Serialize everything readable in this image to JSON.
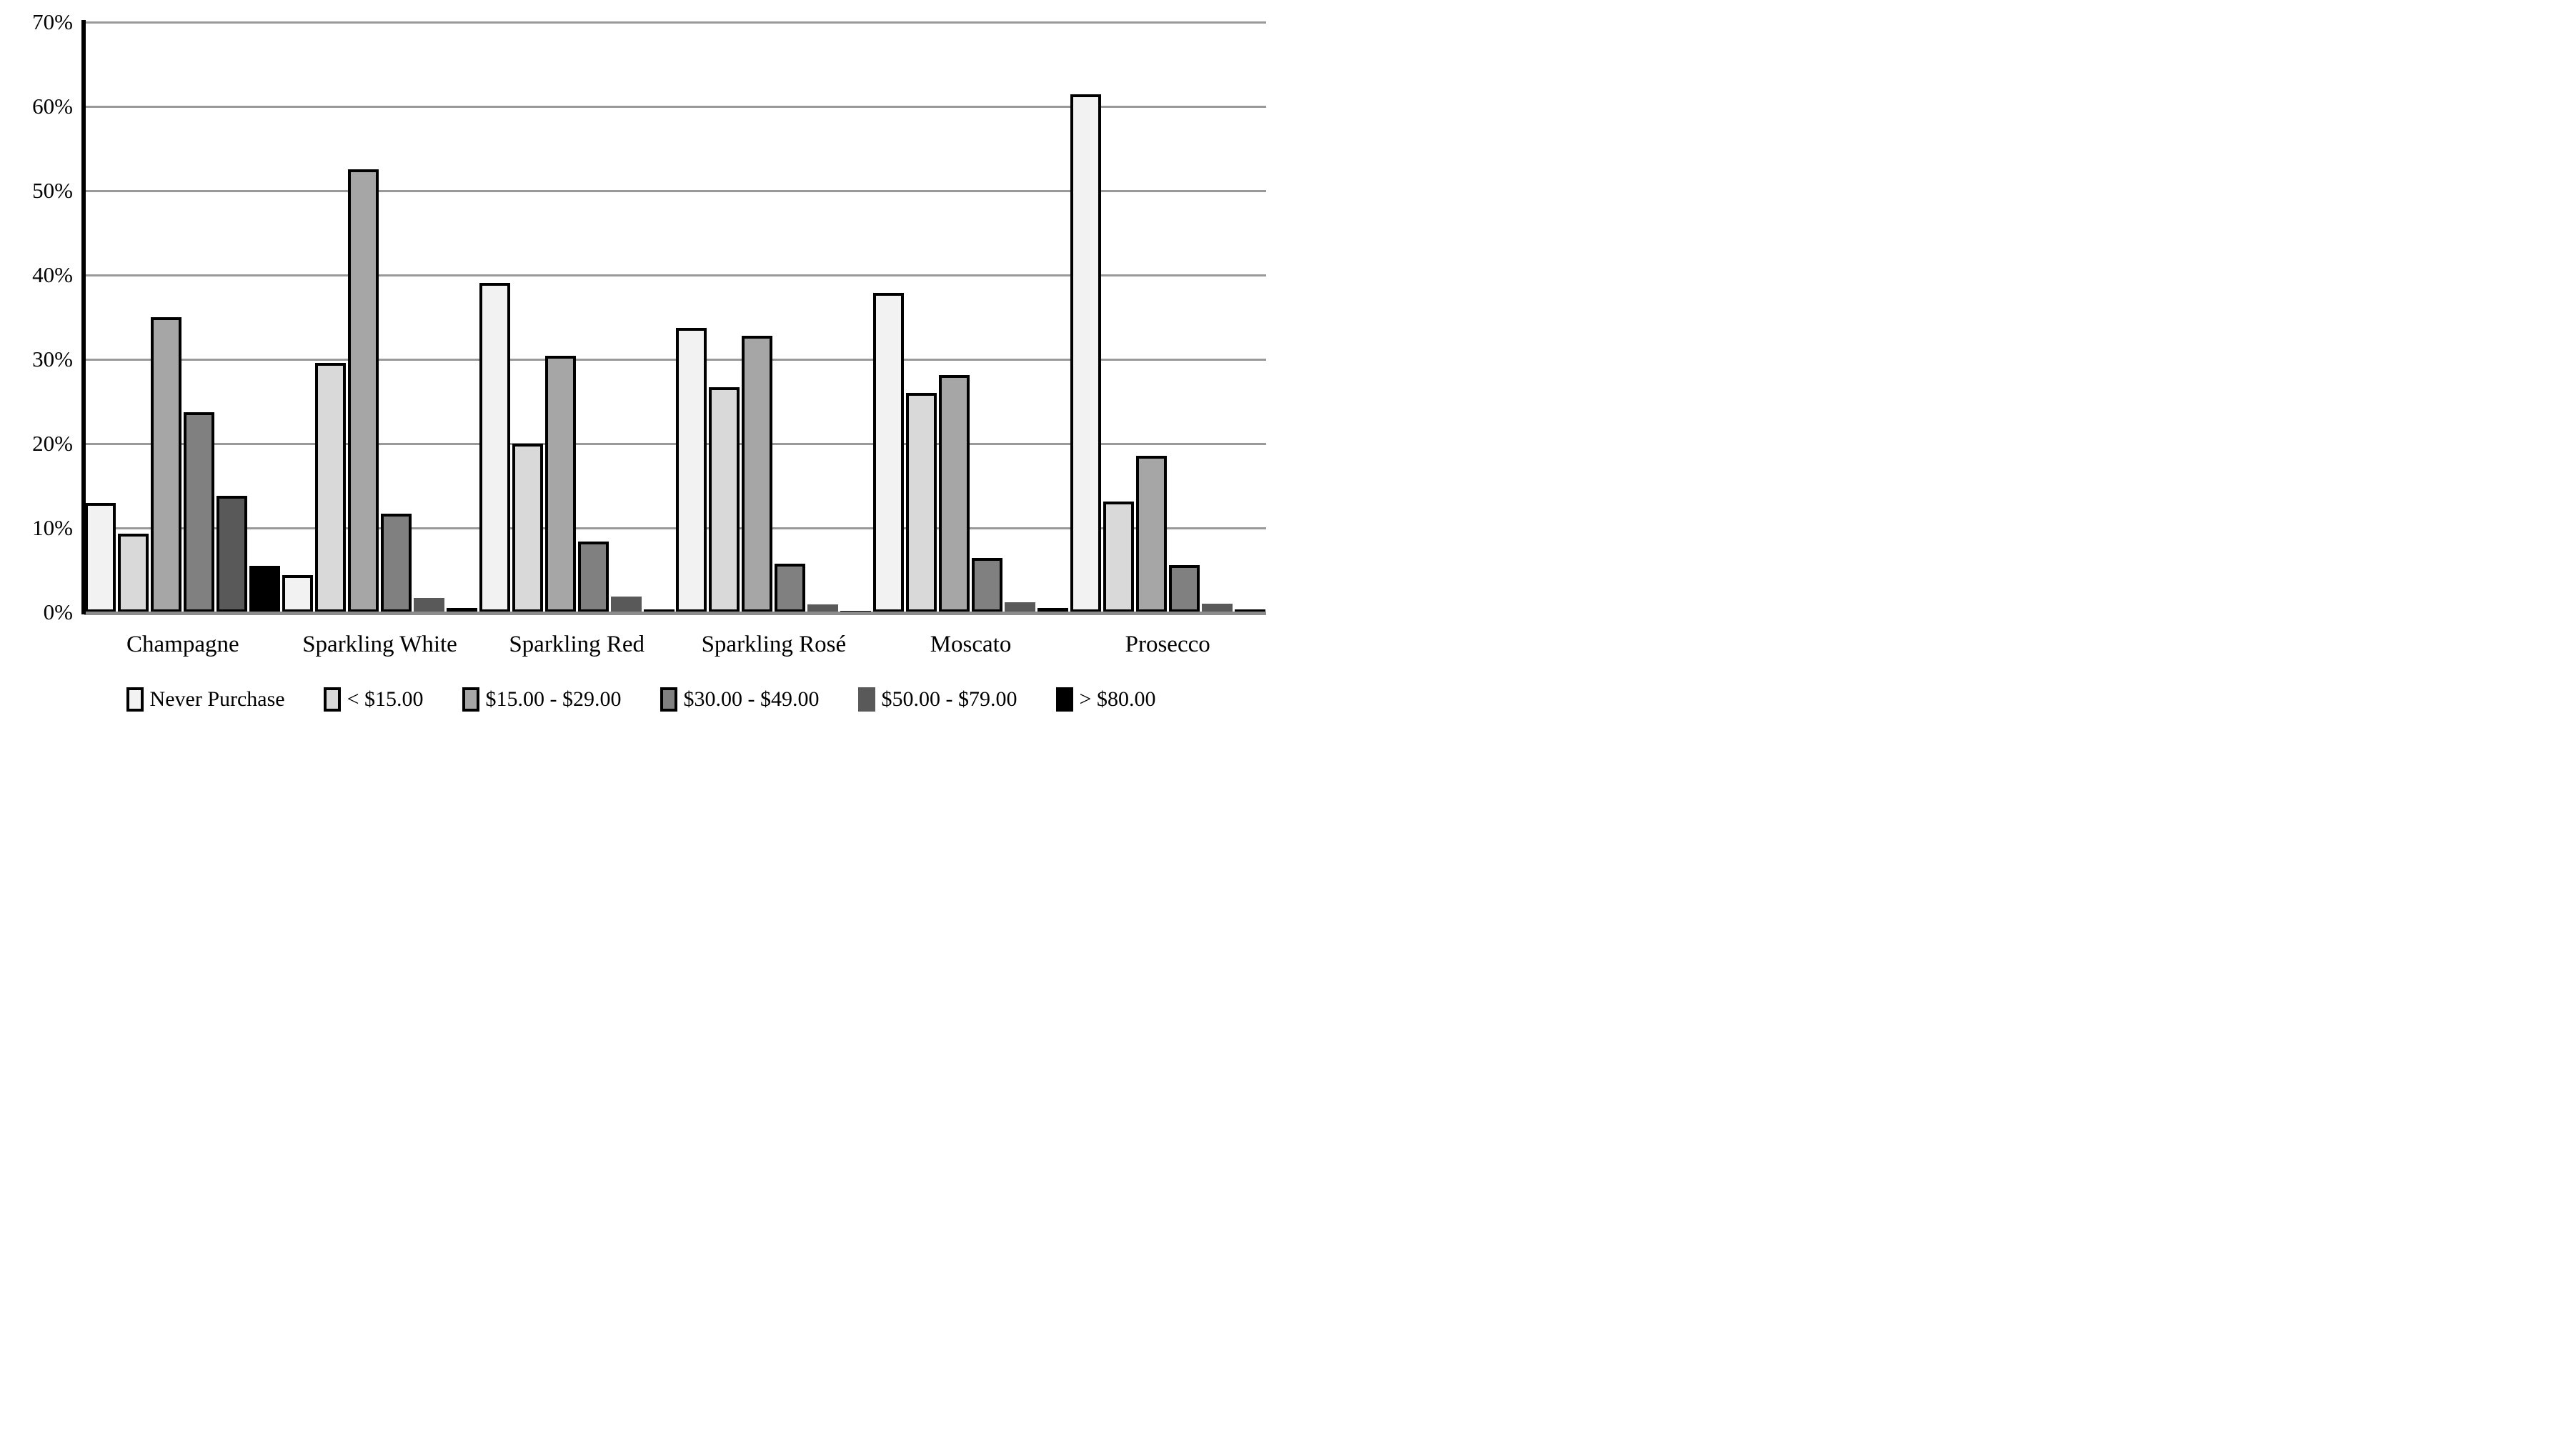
{
  "chart_data": {
    "type": "bar",
    "title": "",
    "xlabel": "",
    "ylabel": "",
    "ylim": [
      0,
      70
    ],
    "grid": true,
    "legend_position": "bottom",
    "yticks": [
      "70%",
      "60%",
      "50%",
      "40%",
      "30%",
      "20%",
      "10%",
      "0%"
    ],
    "categories": [
      "Champagne",
      "Sparkling White",
      "Sparkling Red",
      "Sparkling Rosé",
      "Moscato",
      "Prosecco"
    ],
    "series": [
      {
        "name": "Never Purchase",
        "color": "#f2f2f2",
        "swatch_border": true,
        "values": [
          13.0,
          4.4,
          39.1,
          33.7,
          37.9,
          61.4
        ]
      },
      {
        "name": "< $15.00",
        "color": "#d9d9d9",
        "swatch_border": true,
        "values": [
          9.3,
          29.6,
          20.0,
          26.7,
          26.0,
          13.1
        ]
      },
      {
        "name": "$15.00 - $29.00",
        "color": "#a6a6a6",
        "swatch_border": true,
        "values": [
          35.0,
          52.5,
          30.4,
          32.8,
          28.1,
          18.6
        ]
      },
      {
        "name": "$30.00 - $49.00",
        "color": "#808080",
        "swatch_border": true,
        "values": [
          23.7,
          11.7,
          8.4,
          5.8,
          6.4,
          5.6
        ]
      },
      {
        "name": "$50.00 - $79.00",
        "color": "#595959",
        "swatch_border": false,
        "values": [
          13.8,
          1.7,
          1.9,
          0.9,
          1.2,
          1.0
        ]
      },
      {
        "name": "> $80.00",
        "color": "#000000",
        "swatch_border": false,
        "values": [
          5.5,
          0.5,
          0.3,
          0.2,
          0.5,
          0.3
        ]
      }
    ],
    "style": {
      "gridline_color": "#999999",
      "axis_color": "#000000",
      "bar_border_color": "#000000",
      "border_threshold_pct": 2.5
    }
  }
}
